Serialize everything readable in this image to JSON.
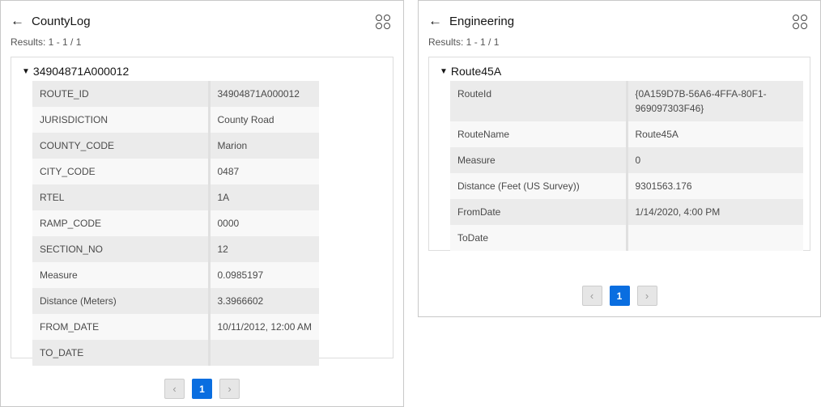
{
  "panels": [
    {
      "title": "CountyLog",
      "results": "Results: 1 - 1 / 1",
      "feature_title": "34904871A000012",
      "rows": [
        [
          "ROUTE_ID",
          "34904871A000012"
        ],
        [
          "JURISDICTION",
          "County Road"
        ],
        [
          "COUNTY_CODE",
          "Marion"
        ],
        [
          "CITY_CODE",
          "0487"
        ],
        [
          "RTEL",
          "1A"
        ],
        [
          "RAMP_CODE",
          "0000"
        ],
        [
          "SECTION_NO",
          "12"
        ],
        [
          "Measure",
          "0.0985197"
        ],
        [
          "Distance (Meters)",
          "3.3966602"
        ],
        [
          "FROM_DATE",
          "10/11/2012, 12:00 AM"
        ],
        [
          "TO_DATE",
          ""
        ]
      ],
      "page": "1"
    },
    {
      "title": "Engineering",
      "results": "Results: 1 - 1 / 1",
      "feature_title": "Route45A",
      "rows": [
        [
          "RouteId",
          "{0A159D7B-56A6-4FFA-80F1-969097303F46}"
        ],
        [
          "RouteName",
          "Route45A"
        ],
        [
          "Measure",
          "0"
        ],
        [
          "Distance (Feet (US Survey))",
          "9301563.176"
        ],
        [
          "FromDate",
          "1/14/2020, 4:00 PM"
        ],
        [
          "ToDate",
          ""
        ]
      ],
      "page": "1"
    }
  ],
  "icons": {
    "back": "arrow-left-icon",
    "options": "grid-circles-icon",
    "prev": "chevron-left-icon",
    "next": "chevron-right-icon",
    "expand": "caret-down-icon"
  },
  "colors": {
    "accent": "#0a6ee0"
  }
}
